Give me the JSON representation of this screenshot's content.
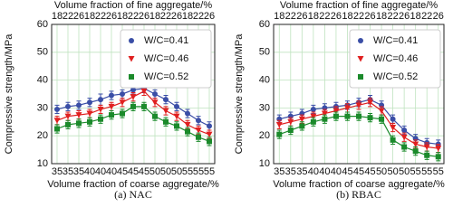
{
  "chart_data": [
    {
      "type": "line",
      "xlabel": "Volume fraction of coarse aggregate/%",
      "x2label": "Volume fraction of fine aggregate/%",
      "ylabel": "Compressive strength/MPa",
      "caption": "(a) NAC",
      "categories": [
        "35",
        "35",
        "35",
        "40",
        "40",
        "40",
        "45",
        "45",
        "45",
        "50",
        "50",
        "50",
        "55",
        "55",
        "55"
      ],
      "top_categories": [
        "18",
        "22",
        "26",
        "18",
        "22",
        "26",
        "18",
        "22",
        "26",
        "18",
        "22",
        "26",
        "18",
        "22",
        "26"
      ],
      "ylim": [
        10,
        60
      ],
      "yticks": [
        10,
        20,
        30,
        40,
        50,
        60
      ],
      "grid": true,
      "legend": "upper right",
      "series": [
        {
          "name": "W/C=0.41",
          "color": "#3a4ea6",
          "marker": "circle",
          "values": [
            29.5,
            30.5,
            31,
            32,
            33,
            34.5,
            35,
            36.5,
            37,
            35,
            33,
            30.5,
            28,
            25.5,
            23.5
          ],
          "errors": [
            1.5,
            1.5,
            1.5,
            1.5,
            2,
            1.5,
            1.5,
            1.5,
            1.5,
            1.5,
            1.5,
            1.5,
            1.5,
            1.5,
            1.5
          ]
        },
        {
          "name": "W/C=0.46",
          "color": "#e02020",
          "marker": "triangle",
          "values": [
            25.5,
            27,
            27.5,
            28,
            29.5,
            30.5,
            32,
            34,
            36,
            32,
            29,
            27,
            24,
            22,
            20.5
          ],
          "errors": [
            1.5,
            1.5,
            1.5,
            1.5,
            1.5,
            1.5,
            1.5,
            1.5,
            1.5,
            1.5,
            1.5,
            1.5,
            1.5,
            1.5,
            1.5
          ]
        },
        {
          "name": "W/C=0.52",
          "color": "#1b8a2b",
          "marker": "square",
          "values": [
            22.5,
            24,
            24.5,
            25,
            26,
            27.5,
            28,
            30.5,
            30.5,
            27,
            25,
            23.5,
            21.5,
            19.5,
            18
          ],
          "errors": [
            1.5,
            1.5,
            1.5,
            1.5,
            1.5,
            1.5,
            1.5,
            1.5,
            1.5,
            1.5,
            1.5,
            1.5,
            1.5,
            1.5,
            1.5
          ]
        }
      ]
    },
    {
      "type": "line",
      "xlabel": "Volume fraction of coarse aggregate/%",
      "x2label": "Volume fraction of fine aggregate/%",
      "ylabel": "Compressive strength/MPa",
      "caption": "(b) RBAC",
      "categories": [
        "35",
        "35",
        "35",
        "40",
        "40",
        "40",
        "45",
        "45",
        "45",
        "50",
        "50",
        "50",
        "55",
        "55",
        "55"
      ],
      "top_categories": [
        "18",
        "22",
        "26",
        "18",
        "22",
        "26",
        "18",
        "22",
        "26",
        "18",
        "22",
        "26",
        "18",
        "22",
        "26"
      ],
      "ylim": [
        10,
        60
      ],
      "yticks": [
        10,
        20,
        30,
        40,
        50,
        60
      ],
      "grid": true,
      "legend": "upper right",
      "series": [
        {
          "name": "W/C=0.41",
          "color": "#3a4ea6",
          "marker": "circle",
          "values": [
            26,
            27,
            28,
            29.5,
            30,
            30.5,
            31,
            32,
            33,
            31,
            26,
            22,
            19,
            17.5,
            17
          ],
          "errors": [
            1.5,
            1.5,
            1.5,
            1.5,
            1.5,
            1.5,
            1.5,
            1.5,
            1.5,
            1.5,
            1.5,
            1.5,
            1.5,
            1.5,
            1.5
          ]
        },
        {
          "name": "W/C=0.46",
          "color": "#e02020",
          "marker": "triangle",
          "values": [
            24,
            25,
            26,
            27,
            28,
            29,
            30,
            31,
            32,
            29,
            23,
            19.5,
            17,
            16,
            15.5
          ],
          "errors": [
            1.5,
            1.5,
            1.5,
            1.5,
            1.5,
            1.5,
            1.5,
            1.5,
            1.5,
            1.5,
            1.5,
            1.5,
            1.5,
            1.5,
            1.5
          ]
        },
        {
          "name": "W/C=0.52",
          "color": "#1b8a2b",
          "marker": "square",
          "values": [
            20.5,
            22,
            23.5,
            25,
            26,
            27,
            27,
            27,
            26.5,
            26,
            18.5,
            16,
            14.5,
            13,
            12.5
          ],
          "errors": [
            1.5,
            1.5,
            1.5,
            1.5,
            1.5,
            1.5,
            1.5,
            1.5,
            1.5,
            1.5,
            1.5,
            1.5,
            1.5,
            1.5,
            1.5
          ]
        }
      ]
    }
  ]
}
